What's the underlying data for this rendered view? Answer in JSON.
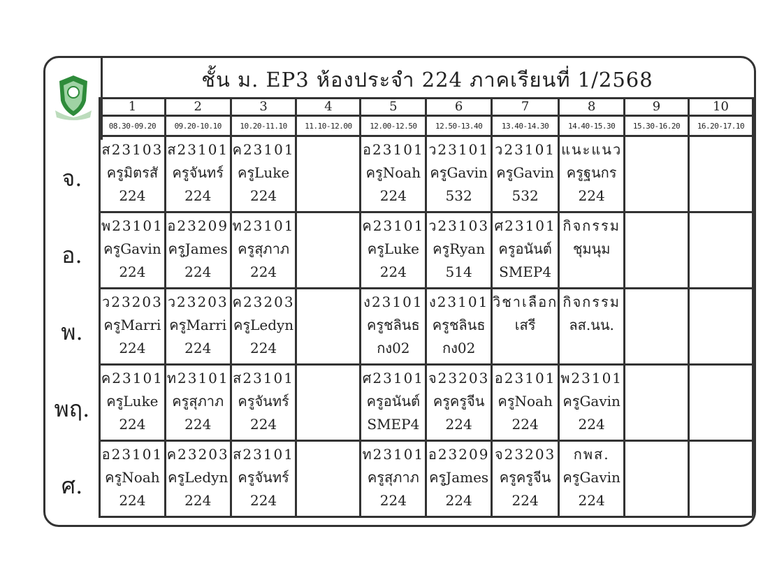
{
  "title": "ชั้น ม. EP3 ห้องประจำ 224 ภาคเรียนที่ 1/2568",
  "periods": [
    "1",
    "2",
    "3",
    "4",
    "5",
    "6",
    "7",
    "8",
    "9",
    "10"
  ],
  "times": [
    "08.30-09.20",
    "09.20-10.10",
    "10.20-11.10",
    "11.10-12.00",
    "12.00-12.50",
    "12.50-13.40",
    "13.40-14.30",
    "14.40-15.30",
    "15.30-16.20",
    "16.20-17.10"
  ],
  "days": [
    {
      "label": "จ.",
      "cells": [
        [
          "ส23103",
          "ครูมิตรสั",
          "224"
        ],
        [
          "ส23101",
          "ครูจันทร์",
          "224"
        ],
        [
          "ค23101",
          "ครูLuke",
          "224"
        ],
        [
          "",
          "",
          ""
        ],
        [
          "อ23101",
          "ครูNoah",
          "224"
        ],
        [
          "ว23101",
          "ครูGavin",
          "532"
        ],
        [
          "ว23101",
          "ครูGavin",
          "532"
        ],
        [
          "แนะแนว",
          "ครูฐนกร",
          "224"
        ],
        [
          "",
          "",
          ""
        ],
        [
          "",
          "",
          ""
        ]
      ]
    },
    {
      "label": "อ.",
      "cells": [
        [
          "พ23101",
          "ครูGavin",
          "224"
        ],
        [
          "อ23209",
          "ครูJames",
          "224"
        ],
        [
          "ท23101",
          "ครูสุภาภ",
          "224"
        ],
        [
          "",
          "",
          ""
        ],
        [
          "ค23101",
          "ครูLuke",
          "224"
        ],
        [
          "ว23103",
          "ครูRyan",
          "514"
        ],
        [
          "ศ23101",
          "ครูอนันต์",
          "SMEP4"
        ],
        [
          "กิจกรรม",
          "ชุมนุม",
          ""
        ],
        [
          "",
          "",
          ""
        ],
        [
          "",
          "",
          ""
        ]
      ]
    },
    {
      "label": "พ.",
      "cells": [
        [
          "ว23203",
          "ครูMarri",
          "224"
        ],
        [
          "ว23203",
          "ครูMarri",
          "224"
        ],
        [
          "ค23203",
          "ครูLedyn",
          "224"
        ],
        [
          "",
          "",
          ""
        ],
        [
          "ง23101",
          "ครูชลินธ",
          "กง02"
        ],
        [
          "ง23101",
          "ครูชลินธ",
          "กง02"
        ],
        [
          "วิชาเลือก",
          "เสรี",
          ""
        ],
        [
          "กิจกรรม",
          "ลส.นน.",
          ""
        ],
        [
          "",
          "",
          ""
        ],
        [
          "",
          "",
          ""
        ]
      ]
    },
    {
      "label": "พฤ.",
      "cells": [
        [
          "ค23101",
          "ครูLuke",
          "224"
        ],
        [
          "ท23101",
          "ครูสุภาภ",
          "224"
        ],
        [
          "ส23101",
          "ครูจันทร์",
          "224"
        ],
        [
          "",
          "",
          ""
        ],
        [
          "ศ23101",
          "ครูอนันต์",
          "SMEP4"
        ],
        [
          "จ23203",
          "ครูครูจีน",
          "224"
        ],
        [
          "อ23101",
          "ครูNoah",
          "224"
        ],
        [
          "พ23101",
          "ครูGavin",
          "224"
        ],
        [
          "",
          "",
          ""
        ],
        [
          "",
          "",
          ""
        ]
      ]
    },
    {
      "label": "ศ.",
      "cells": [
        [
          "อ23101",
          "ครูNoah",
          "224"
        ],
        [
          "ค23203",
          "ครูLedyn",
          "224"
        ],
        [
          "ส23101",
          "ครูจันทร์",
          "224"
        ],
        [
          "",
          "",
          ""
        ],
        [
          "ท23101",
          "ครูสุภาภ",
          "224"
        ],
        [
          "อ23209",
          "ครูJames",
          "224"
        ],
        [
          "จ23203",
          "ครูครูจีน",
          "224"
        ],
        [
          "กพส.",
          "ครูGavin",
          "224"
        ],
        [
          "",
          "",
          ""
        ],
        [
          "",
          "",
          ""
        ]
      ]
    }
  ],
  "colors": {
    "logo_green": "#2e8b3a",
    "border": "#333333"
  }
}
